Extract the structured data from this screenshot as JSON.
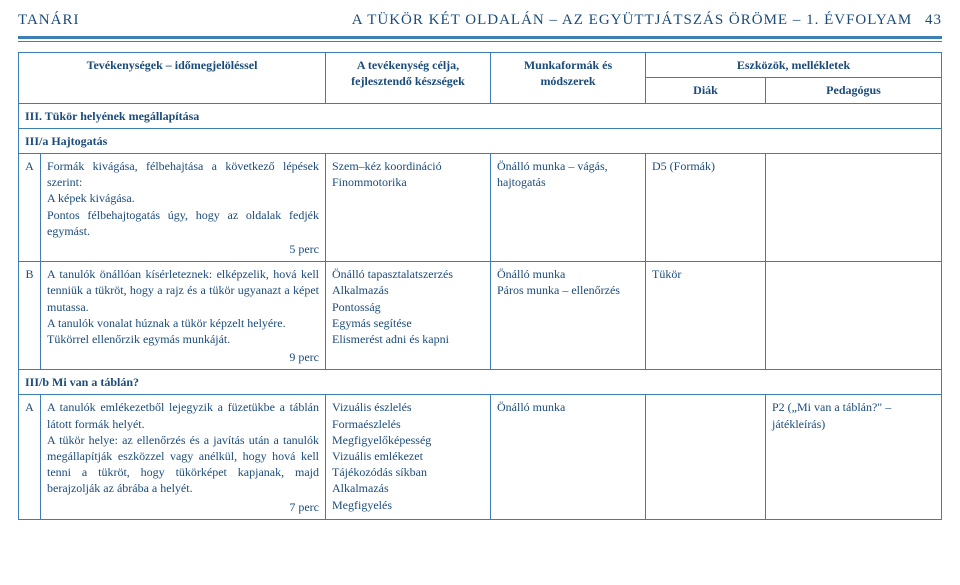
{
  "header": {
    "left": "TANÁRI",
    "right_title": "A TÜKÖR KÉT OLDALÁN – AZ EGYÜTTJÁTSZÁS ÖRÖME – 1. ÉVFOLYAM",
    "page_number": "43"
  },
  "table": {
    "head": {
      "activities": "Tevékenységek – időmegjelöléssel",
      "goal": "A tevékenység célja, fejlesztendő készségek",
      "methods": "Munkaformák és módszerek",
      "tools_group": "Eszközök, mellékletek",
      "diak": "Diák",
      "pedagogus": "Pedagógus"
    },
    "section3": {
      "title": "III. Tükör helyének megállapítása",
      "sub_a_title": "III/a Hajtogatás",
      "row_a": {
        "label": "A",
        "text": "Formák kivágása, félbehajtása a következő lépések szerint:\nA képek kivágása.\nPontos félbehajtogatás úgy, hogy az oldalak fedjék egymást.",
        "time": "5 perc",
        "goal": "Szem–kéz koordináció\nFinommotorika",
        "methods": "Önálló munka – vágás, hajtogatás",
        "diak": "D5 (Formák)",
        "pedagogus": ""
      },
      "row_b": {
        "label": "B",
        "text": "A tanulók önállóan kísérleteznek: elképzelik, hová kell tenniük a tükröt, hogy a rajz és a tükör ugyanazt a képet mutassa.\nA tanulók vonalat húznak a tükör képzelt helyére.\nTükörrel ellenőrzik egymás munkáját.",
        "time": "9 perc",
        "goal": "Önálló tapasztalatszerzés\nAlkalmazás\nPontosság\nEgymás segítése\nElismerést adni és kapni",
        "methods": "Önálló munka\nPáros munka – ellenőrzés",
        "diak": "Tükör",
        "pedagogus": ""
      },
      "sub_b_title": "III/b Mi van a táblán?",
      "row_c": {
        "label": "A",
        "text": "A tanulók emlékezetből lejegyzik a füzetükbe a táblán látott formák helyét.\nA tükör helye: az ellenőrzés és a javítás után a tanulók megállapítják eszközzel vagy anélkül, hogy hová kell tenni a tükröt, hogy tükörképet kapjanak, majd berajzolják az ábrába a helyét.",
        "time": "7 perc",
        "goal": "Vizuális észlelés\nFormaészlelés\nMegfigyelőképesség\nVizuális emlékezet\nTájékozódás síkban\nAlkalmazás\nMegfigyelés",
        "methods": "Önálló munka",
        "diak": "",
        "pedagogus": "P2 („Mi van a táblán?\" – játékleírás)"
      }
    }
  }
}
